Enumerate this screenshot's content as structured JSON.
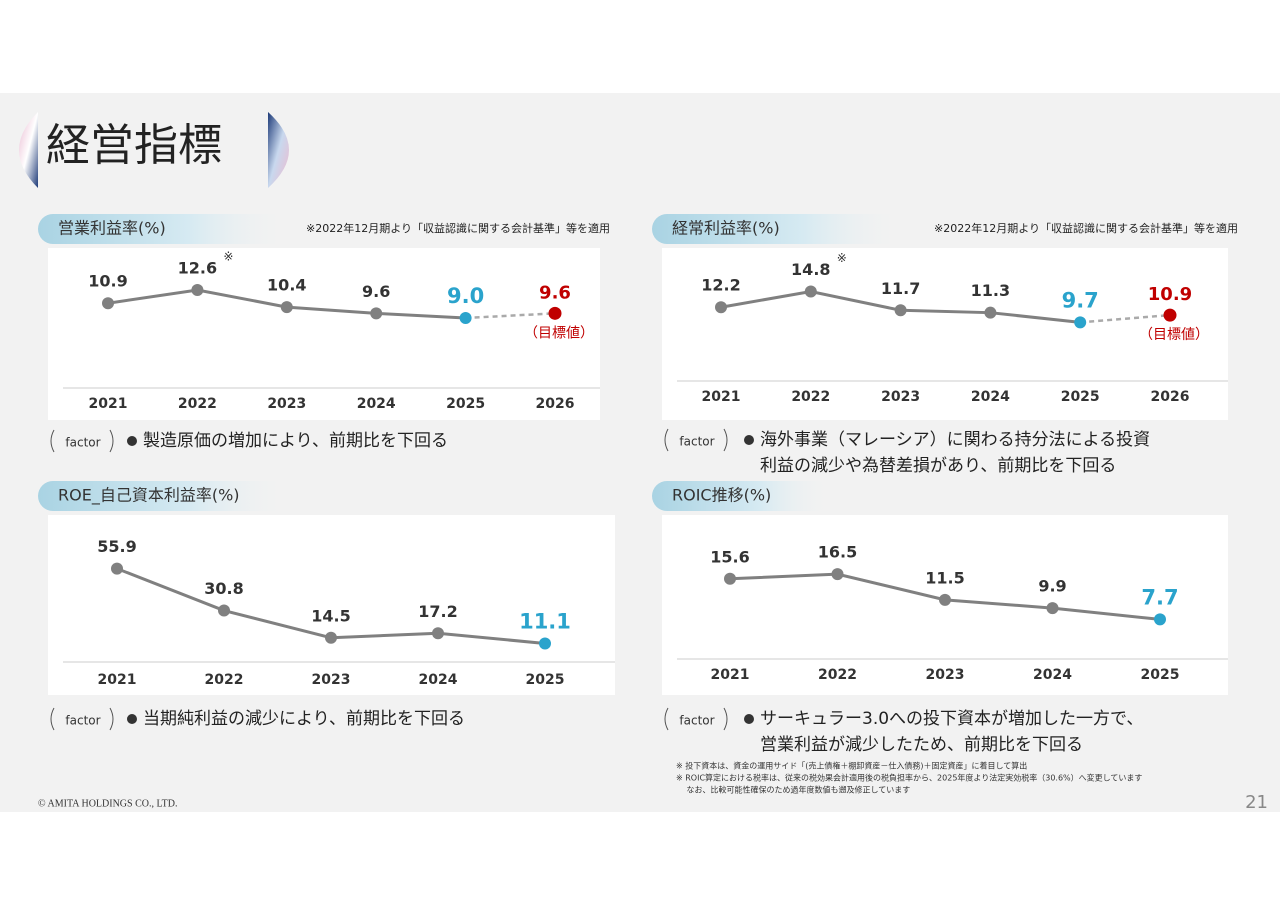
{
  "header": {
    "title": "経営指標"
  },
  "chart_data": [
    {
      "type": "line",
      "title": "営業利益率(%)",
      "subtitle": "※2022年12月期より「収益認識に関する会計基準」等を適用",
      "note_mark": "※",
      "categories": [
        "2021",
        "2022",
        "2023",
        "2024",
        "2025",
        "2026"
      ],
      "values": [
        10.9,
        12.6,
        10.4,
        9.6,
        9.0,
        null
      ],
      "value_labels": [
        "10.9",
        "12.6",
        "10.4",
        "9.6",
        "9.0",
        null
      ],
      "target_values": [
        null,
        null,
        null,
        null,
        null,
        9.6
      ],
      "target_value_labels": [
        null,
        null,
        null,
        null,
        null,
        "9.6"
      ],
      "target_label": "（目標値）",
      "ylim": [
        0,
        18
      ],
      "color": "#808080",
      "highlight_color": "#2aa3cc",
      "target_color": "#c00000",
      "factor": {
        "tag": "factor",
        "lines": [
          "製造原価の増加により、前期比を下回る"
        ]
      }
    },
    {
      "type": "line",
      "title": "経常利益率(%)",
      "subtitle": "※2022年12月期より「収益認識に関する会計基準」等を適用",
      "note_mark": "※",
      "categories": [
        "2021",
        "2022",
        "2023",
        "2024",
        "2025",
        "2026"
      ],
      "values": [
        12.2,
        14.8,
        11.7,
        11.3,
        9.7,
        null
      ],
      "value_labels": [
        "12.2",
        "14.8",
        "11.7",
        "11.3",
        "9.7",
        null
      ],
      "target_values": [
        null,
        null,
        null,
        null,
        null,
        10.9
      ],
      "target_value_labels": [
        null,
        null,
        null,
        null,
        null,
        "10.9"
      ],
      "target_label": "（目標値）",
      "ylim": [
        0,
        22
      ],
      "color": "#808080",
      "highlight_color": "#2aa3cc",
      "target_color": "#c00000",
      "factor": {
        "tag": "factor",
        "lines": [
          "海外事業（マレーシア）に関わる持分法による投資",
          "利益の減少や為替差損があり、前期比を下回る"
        ]
      }
    },
    {
      "type": "line",
      "title": "ROE_自己資本利益率(%)",
      "categories": [
        "2021",
        "2022",
        "2023",
        "2024",
        "2025"
      ],
      "values": [
        55.9,
        30.8,
        14.5,
        17.2,
        11.1
      ],
      "value_labels": [
        "55.9",
        "30.8",
        "14.5",
        "17.2",
        "11.1"
      ],
      "ylim": [
        0,
        88
      ],
      "color": "#808080",
      "highlight_color": "#2aa3cc",
      "factor": {
        "tag": "factor",
        "lines": [
          "当期純利益の減少により、前期比を下回る"
        ]
      }
    },
    {
      "type": "line",
      "title": "ROIC推移(%)",
      "categories": [
        "2021",
        "2022",
        "2023",
        "2024",
        "2025"
      ],
      "values": [
        15.6,
        16.5,
        11.5,
        9.9,
        7.7
      ],
      "value_labels": [
        "15.6",
        "16.5",
        "11.5",
        "9.9",
        "7.7"
      ],
      "ylim": [
        0,
        28
      ],
      "color": "#808080",
      "highlight_color": "#2aa3cc",
      "factor": {
        "tag": "factor",
        "lines": [
          "サーキュラー3.0への投下資本が増加した一方で、",
          "営業利益が減少したため、前期比を下回る"
        ]
      }
    }
  ],
  "footnotes": [
    "※ 投下資本は、資金の運用サイド「(売上債権＋棚卸資産－仕入債務)＋固定資産」に着目して算出",
    "※ ROIC算定における税率は、従来の税効果会計適用後の税負担率から、2025年度より法定実効税率（30.6%）へ変更しています",
    "　 なお、比較可能性確保のため過年度数値も遡及修正しています"
  ],
  "copyright": "© AMITA HOLDINGS CO., LTD.",
  "page_number": "21"
}
